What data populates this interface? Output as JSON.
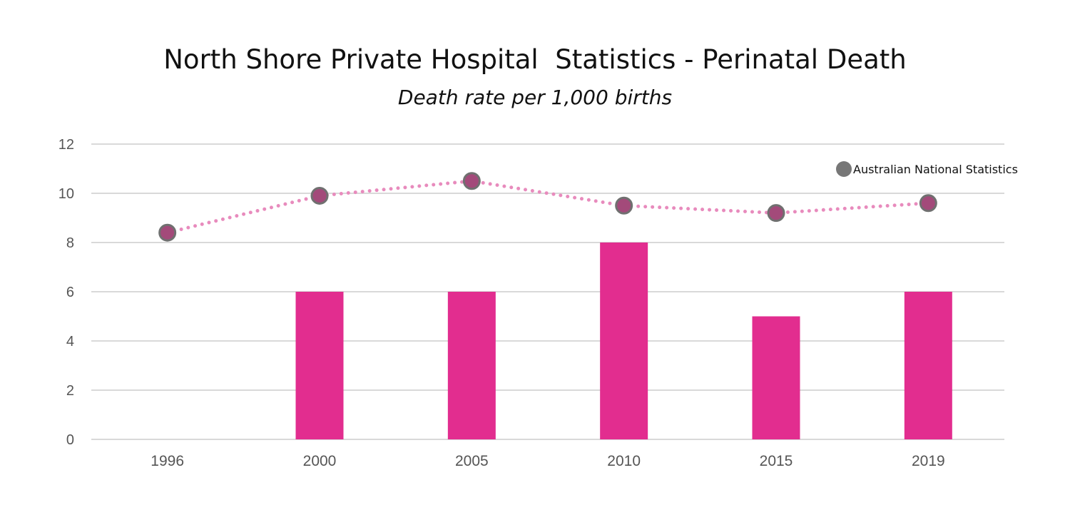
{
  "chart_data": {
    "type": "bar+line",
    "title": "North Shore Private Hospital  Statistics - Perinatal Death",
    "subtitle": "Death rate per 1,000 births",
    "categories": [
      "1996",
      "2000",
      "2005",
      "2010",
      "2015",
      "2019"
    ],
    "series": [
      {
        "type": "bar",
        "values": [
          null,
          6,
          6,
          8,
          5,
          6
        ],
        "color": "#e22d8f"
      },
      {
        "type": "line",
        "name": "Australian National Statistics",
        "values": [
          8.4,
          9.9,
          10.5,
          9.5,
          9.2,
          9.6
        ],
        "color": "#e88bbd",
        "marker_color": "#a34a7a",
        "marker_border": "#707070"
      }
    ],
    "ylim": [
      0,
      12
    ],
    "yticks": [
      "0",
      "2",
      "4",
      "6",
      "8",
      "10",
      "12"
    ],
    "grid": true,
    "legend_position": "top-right"
  }
}
